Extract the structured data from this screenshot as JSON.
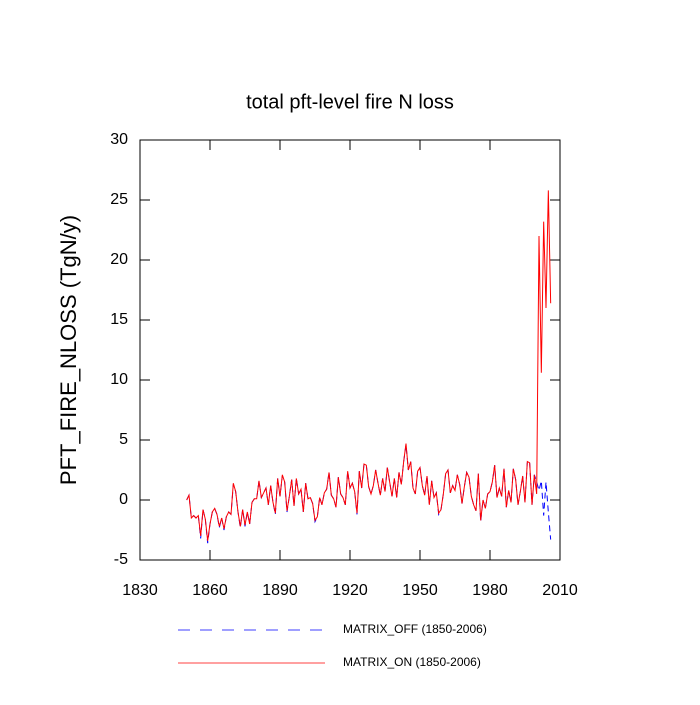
{
  "chart_data": {
    "type": "line",
    "title": "total pft-level fire N loss",
    "y_label": "PFT_FIRE_NLOSS  (TgN/y)",
    "x": [
      1850,
      1851,
      1852,
      1853,
      1854,
      1855,
      1856,
      1857,
      1858,
      1859,
      1860,
      1861,
      1862,
      1863,
      1864,
      1865,
      1866,
      1867,
      1868,
      1869,
      1870,
      1871,
      1872,
      1873,
      1874,
      1875,
      1876,
      1877,
      1878,
      1879,
      1880,
      1881,
      1882,
      1883,
      1884,
      1885,
      1886,
      1887,
      1888,
      1889,
      1890,
      1891,
      1892,
      1893,
      1894,
      1895,
      1896,
      1897,
      1898,
      1899,
      1900,
      1901,
      1902,
      1903,
      1904,
      1905,
      1906,
      1907,
      1908,
      1909,
      1910,
      1911,
      1912,
      1913,
      1914,
      1915,
      1916,
      1917,
      1918,
      1919,
      1920,
      1921,
      1922,
      1923,
      1924,
      1925,
      1926,
      1927,
      1928,
      1929,
      1930,
      1931,
      1932,
      1933,
      1934,
      1935,
      1936,
      1937,
      1938,
      1939,
      1940,
      1941,
      1942,
      1943,
      1944,
      1945,
      1946,
      1947,
      1948,
      1949,
      1950,
      1951,
      1952,
      1953,
      1954,
      1955,
      1956,
      1957,
      1958,
      1959,
      1960,
      1961,
      1962,
      1963,
      1964,
      1965,
      1966,
      1967,
      1968,
      1969,
      1970,
      1971,
      1972,
      1973,
      1974,
      1975,
      1976,
      1977,
      1978,
      1979,
      1980,
      1981,
      1982,
      1983,
      1984,
      1985,
      1986,
      1987,
      1988,
      1989,
      1990,
      1991,
      1992,
      1993,
      1994,
      1995,
      1996,
      1997,
      1998,
      1999,
      2000,
      2001,
      2002,
      2003,
      2004,
      2005,
      2006
    ],
    "series": [
      {
        "name": "MATRIX_OFF (1850-2006)",
        "color": "#0000ff",
        "style": "dashed",
        "values": [
          0,
          0.4,
          -1.5,
          -1.3,
          -1.5,
          -1.3,
          -3.2,
          -0.8,
          -1.6,
          -3.6,
          -2.0,
          -1.0,
          -0.7,
          -1.2,
          -2.3,
          -1.5,
          -2.5,
          -1.4,
          -1.0,
          -1.2,
          1.3,
          0.7,
          -1.0,
          -2.3,
          -0.8,
          -2.2,
          -1.0,
          -2.0,
          -0.2,
          0.1,
          0.1,
          1.6,
          0.2,
          0.6,
          1.0,
          -0.4,
          1.2,
          -0.2,
          -1.2,
          1.8,
          0.3,
          2.0,
          1.5,
          -1.0,
          0.3,
          1.7,
          -0.5,
          1.8,
          0.5,
          0.9,
          -1.0,
          1.4,
          0.1,
          0.2,
          -0.3,
          -1.8,
          -1.4,
          0.2,
          -0.4,
          0.6,
          0.9,
          2.3,
          0.4,
          0.1,
          -0.6,
          1.9,
          0.5,
          0.2,
          -0.4,
          2.4,
          1.0,
          1.4,
          0.7,
          -1.2,
          2.4,
          1.0,
          3.0,
          2.9,
          1.1,
          0.5,
          1.2,
          2.5,
          1.4,
          0.4,
          1.8,
          0.7,
          2.7,
          1.5,
          0.3,
          1.8,
          0.2,
          2.3,
          1.3,
          3.2,
          4.6,
          2.5,
          3.2,
          1.0,
          0.5,
          2.4,
          2.7,
          1.2,
          0.4,
          2.0,
          -0.4,
          1.6,
          0.2,
          0.6,
          -1.2,
          -0.8,
          0.5,
          2.2,
          2.5,
          0.6,
          1.2,
          0.8,
          2.1,
          1.3,
          -0.3,
          1.1,
          2.3,
          1.9,
          0.3,
          -0.4,
          -0.9,
          2.2,
          -1.8,
          0.0,
          -0.7,
          0.5,
          0.7,
          1.5,
          2.9,
          0.2,
          1.0,
          0.3,
          2.6,
          -0.6,
          0.8,
          -0.2,
          2.6,
          1.7,
          -0.4,
          0.7,
          2.0,
          -0.2,
          3.2,
          3.1,
          -0.4,
          2.1,
          1.5,
          0.8,
          1.6,
          -1.3,
          1.5,
          -1.0,
          -3.3
        ]
      },
      {
        "name": "MATRIX_ON (1850-2006)",
        "color": "#ff0000",
        "style": "solid",
        "values": [
          0,
          0.4,
          -1.5,
          -1.3,
          -1.5,
          -1.3,
          -3.0,
          -0.8,
          -1.6,
          -3.4,
          -2.0,
          -1.0,
          -0.7,
          -1.2,
          -2.2,
          -1.5,
          -2.4,
          -1.4,
          -1.0,
          -1.2,
          1.4,
          0.7,
          -1.0,
          -2.2,
          -0.8,
          -2.1,
          -1.0,
          -2.0,
          -0.2,
          0.1,
          0.1,
          1.6,
          0.2,
          0.6,
          1.0,
          -0.4,
          1.2,
          -0.2,
          -1.1,
          1.8,
          0.3,
          2.1,
          1.5,
          -0.9,
          0.3,
          1.7,
          -0.5,
          1.8,
          0.5,
          0.9,
          -1.0,
          1.4,
          0.1,
          0.2,
          -0.3,
          -1.7,
          -1.4,
          0.2,
          -0.4,
          0.6,
          0.9,
          2.3,
          0.4,
          0.1,
          -0.6,
          1.9,
          0.5,
          0.2,
          -0.4,
          2.4,
          1.0,
          1.4,
          0.7,
          -1.1,
          2.4,
          1.0,
          3.0,
          2.9,
          1.1,
          0.5,
          1.2,
          2.5,
          1.4,
          0.4,
          1.8,
          0.7,
          2.7,
          1.5,
          0.3,
          1.8,
          0.2,
          2.3,
          1.3,
          3.2,
          4.7,
          2.5,
          3.2,
          1.0,
          0.5,
          2.4,
          2.7,
          1.2,
          0.4,
          2.0,
          -0.4,
          1.6,
          0.2,
          0.6,
          -1.1,
          -0.8,
          0.5,
          2.2,
          2.5,
          0.6,
          1.2,
          0.8,
          2.1,
          1.3,
          -0.3,
          1.1,
          2.3,
          1.9,
          0.3,
          -0.4,
          -0.9,
          2.2,
          -1.7,
          0.0,
          -0.7,
          0.5,
          0.7,
          1.5,
          2.9,
          0.2,
          1.0,
          0.3,
          2.6,
          -0.6,
          0.8,
          -0.2,
          2.6,
          1.7,
          -0.4,
          0.7,
          2.0,
          -0.2,
          3.2,
          3.1,
          -0.4,
          2.1,
          0.5,
          22.0,
          10.6,
          23.2,
          16.0,
          25.8,
          16.4
        ]
      }
    ],
    "xlim": [
      1830,
      2010
    ],
    "xticks": [
      1830,
      1860,
      1890,
      1920,
      1950,
      1980,
      2010
    ],
    "ylim": [
      -5,
      30
    ],
    "yticks": [
      -5,
      0,
      5,
      10,
      15,
      20,
      25,
      30
    ]
  }
}
